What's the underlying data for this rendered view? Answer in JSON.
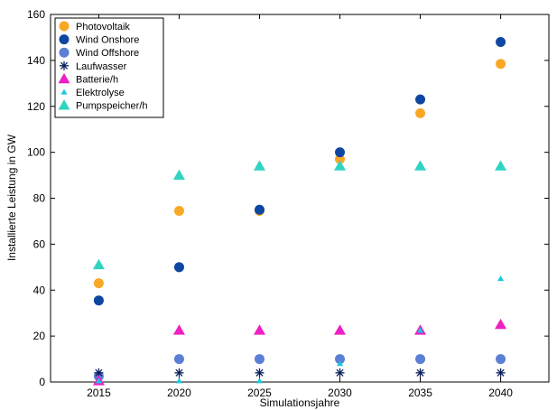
{
  "chart_data": {
    "type": "scatter",
    "title": "",
    "xlabel": "Simulationsjahre",
    "ylabel": "Installierte Leistung in GW",
    "x": [
      2015,
      2020,
      2025,
      2030,
      2035,
      2040
    ],
    "xticks": [
      "2015",
      "2020",
      "2025",
      "2030",
      "2035",
      "2040"
    ],
    "ylim": [
      0,
      160
    ],
    "yticks": [
      "0",
      "20",
      "40",
      "60",
      "80",
      "100",
      "120",
      "140",
      "160"
    ],
    "grid": false,
    "legend_position": "top-left",
    "series": [
      {
        "name": "Photovoltaik",
        "color": "#f9a825",
        "marker": "circle",
        "values": [
          43,
          74.5,
          74.5,
          97,
          117,
          138.5
        ]
      },
      {
        "name": "Wind Onshore",
        "color": "#0d47a1",
        "marker": "circle",
        "values": [
          35.5,
          50,
          75,
          100,
          123,
          148
        ]
      },
      {
        "name": "Wind Offshore",
        "color": "#5c7fd6",
        "marker": "circle",
        "values": [
          2.5,
          10,
          10,
          10,
          10,
          10
        ]
      },
      {
        "name": "Laufwasser",
        "color": "#0a1f5c",
        "marker": "asterisk",
        "values": [
          4,
          4,
          4,
          4,
          4,
          4
        ]
      },
      {
        "name": "Batterie/h",
        "color": "#ee1fc4",
        "marker": "triangle",
        "values": [
          0.5,
          22.5,
          22.5,
          22.5,
          22.5,
          25
        ]
      },
      {
        "name": "Elektrolyse",
        "color": "#18c8e0",
        "marker": "small-triangle",
        "values": [
          0.5,
          0.5,
          0.5,
          8,
          22.5,
          45
        ]
      },
      {
        "name": "Pumpspeicher/h",
        "color": "#2fd4c0",
        "marker": "triangle",
        "values": [
          51,
          90,
          94,
          94,
          94,
          94
        ]
      }
    ]
  }
}
